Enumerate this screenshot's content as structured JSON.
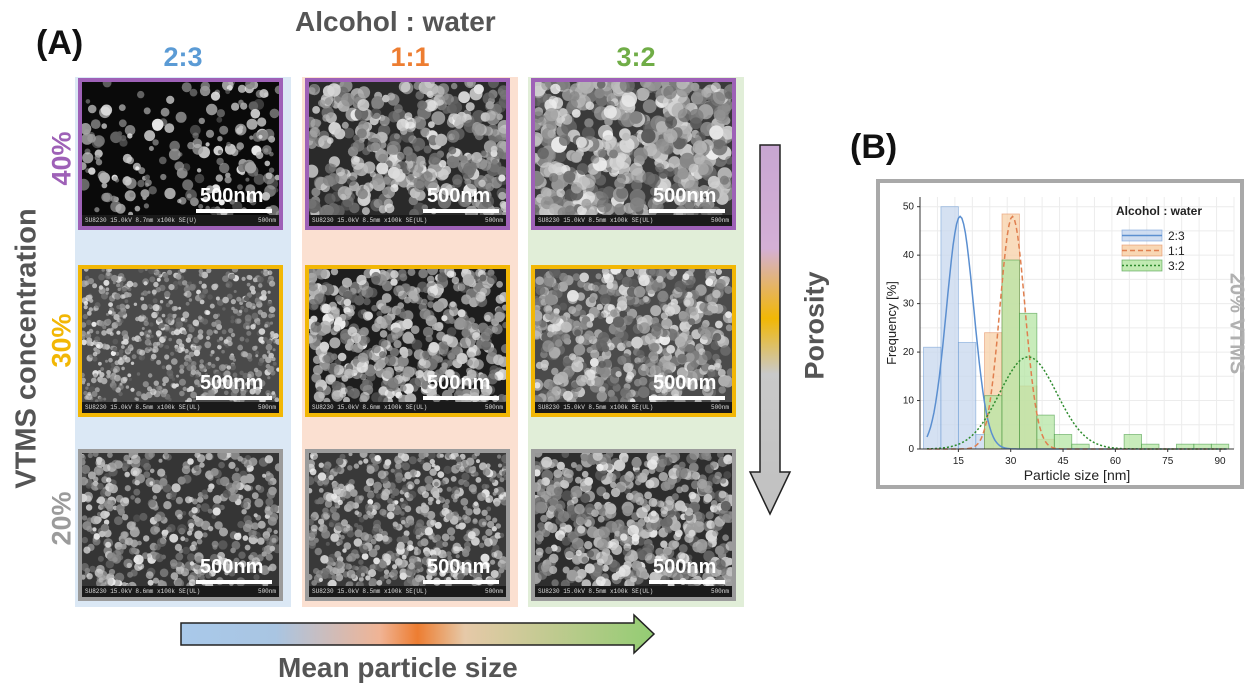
{
  "panel_a": {
    "label": "(A)",
    "header": "Alcohol : water",
    "columns": [
      {
        "label": "2:3",
        "color": "#5b9bd5",
        "bg": "#dbe8f5"
      },
      {
        "label": "1:1",
        "color": "#ed7d31",
        "bg": "#fbe0d1"
      },
      {
        "label": "3:2",
        "color": "#70ad47",
        "bg": "#e1eed8"
      }
    ],
    "rows": [
      {
        "label": "40%",
        "color": "#9e61b7"
      },
      {
        "label": "30%",
        "color": "#f2b705"
      },
      {
        "label": "20%",
        "color": "#9b9b9b"
      }
    ],
    "y_axis_label": "VTMS concentration",
    "scale_text": "500nm",
    "sem_footers": [
      [
        "SU8230 15.0kV 8.7mm x100k SE(U)",
        "SU8230 15.0kV 8.5mm x100k SE(UL)",
        "SU8230 15.0kV 8.5mm x100k SE(UL)"
      ],
      [
        "SU8230 15.0kV 8.5mm x100k SE(UL)",
        "SU8230 15.0kV 8.6mm x100k SE(UL)",
        "SU8230 15.0kV 8.5mm x100k SE(UL)"
      ],
      [
        "SU8230 15.0kV 8.6mm x100k SE(UL)",
        "SU8230 15.0kV 8.5mm x100k SE(UL)",
        "SU8230 15.0kV 8.5mm x100k SE(UL)"
      ]
    ],
    "sem_footer_right": "500nm",
    "porosity_label": "Porosity",
    "mean_size_label": "Mean particle size"
  },
  "panel_b": {
    "label": "(B)",
    "side_label": "20% VTMS"
  },
  "chart_data": {
    "type": "bar",
    "title": "",
    "xlabel": "Particle size [nm]",
    "ylabel": "Frequency [%]",
    "xlim": [
      4,
      94
    ],
    "ylim": [
      0,
      52
    ],
    "xticks": [
      15,
      30,
      45,
      60,
      75,
      90
    ],
    "yticks": [
      0,
      10,
      20,
      30,
      40,
      50
    ],
    "grid": true,
    "legend_title": "Alcohol : water",
    "legend_position": "top-right",
    "bin_width": 5,
    "series": [
      {
        "name": "2:3",
        "color": "#5b8fd0",
        "fill": "#c7d7ee",
        "line_style": "solid",
        "bins": [
          [
            7.5,
            21
          ],
          [
            12.5,
            50
          ],
          [
            17.5,
            22
          ],
          [
            22.5,
            3
          ]
        ],
        "fit": {
          "mean": 15.5,
          "sd": 3.9,
          "peak": 48
        }
      },
      {
        "name": "1:1",
        "color": "#e07f4f",
        "fill": "#f7d0a7",
        "line_style": "dashed",
        "bins": [
          [
            25,
            24
          ],
          [
            30,
            48.5
          ],
          [
            35,
            13
          ],
          [
            40,
            2
          ]
        ],
        "fit": {
          "mean": 30.5,
          "sd": 3.6,
          "peak": 48
        }
      },
      {
        "name": "3:2",
        "color": "#2e8b2e",
        "fill": "#b6e6a4",
        "line_style": "dotted",
        "bins": [
          [
            25,
            11
          ],
          [
            30,
            39
          ],
          [
            35,
            28
          ],
          [
            40,
            7
          ],
          [
            45,
            3
          ],
          [
            50,
            1
          ],
          [
            65,
            3
          ],
          [
            70,
            1
          ],
          [
            80,
            1
          ],
          [
            85,
            1
          ],
          [
            90,
            1
          ]
        ],
        "fit": {
          "mean": 35,
          "sd": 8.2,
          "peak": 19
        }
      }
    ]
  }
}
